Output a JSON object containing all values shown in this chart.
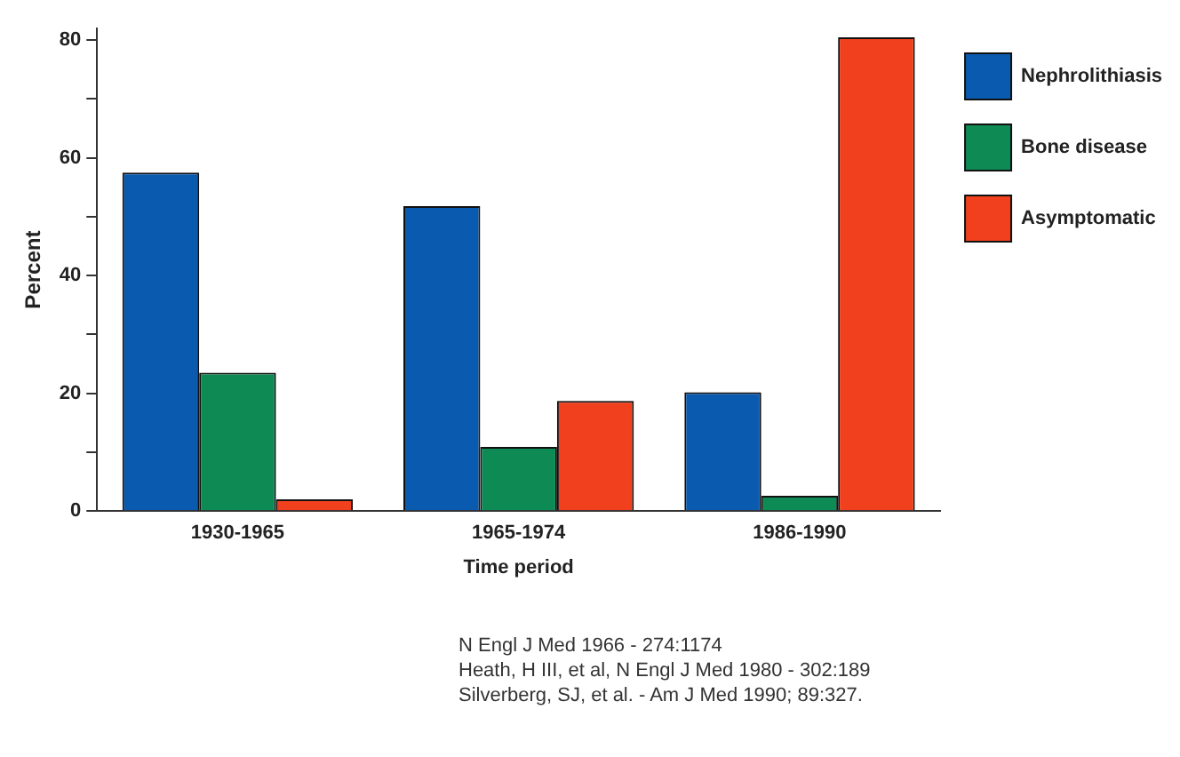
{
  "chart_data": {
    "type": "bar",
    "xlabel": "Time period",
    "ylabel": "Percent",
    "categories": [
      "1930-1965",
      "1965-1974",
      "1986-1990"
    ],
    "series": [
      {
        "name": "Nephrolithiasis",
        "color": "#0a5bb0",
        "values": [
          57.5,
          51.8,
          20.2
        ]
      },
      {
        "name": "Bone disease",
        "color": "#0e8a55",
        "values": [
          23.5,
          10.9,
          2.6
        ]
      },
      {
        "name": "Asymptomatic",
        "color": "#f0401e",
        "values": [
          2,
          18.7,
          80.5
        ]
      }
    ],
    "ylim": [
      0,
      82
    ],
    "yticks": [
      0,
      {
        "value": 10,
        "label": null
      },
      20,
      {
        "value": 30,
        "label": null
      },
      40,
      {
        "value": 50,
        "label": null
      },
      60,
      {
        "value": 70,
        "label": null
      },
      80
    ],
    "grid": false,
    "legend": "top right",
    "annotations": [
      "N Engl J Med 1966 - 274:1174",
      "Heath, H III, et al, N Engl J Med 1980 - 302:189",
      "Silverberg, SJ, et al. - Am J Med 1990; 89:327."
    ]
  }
}
